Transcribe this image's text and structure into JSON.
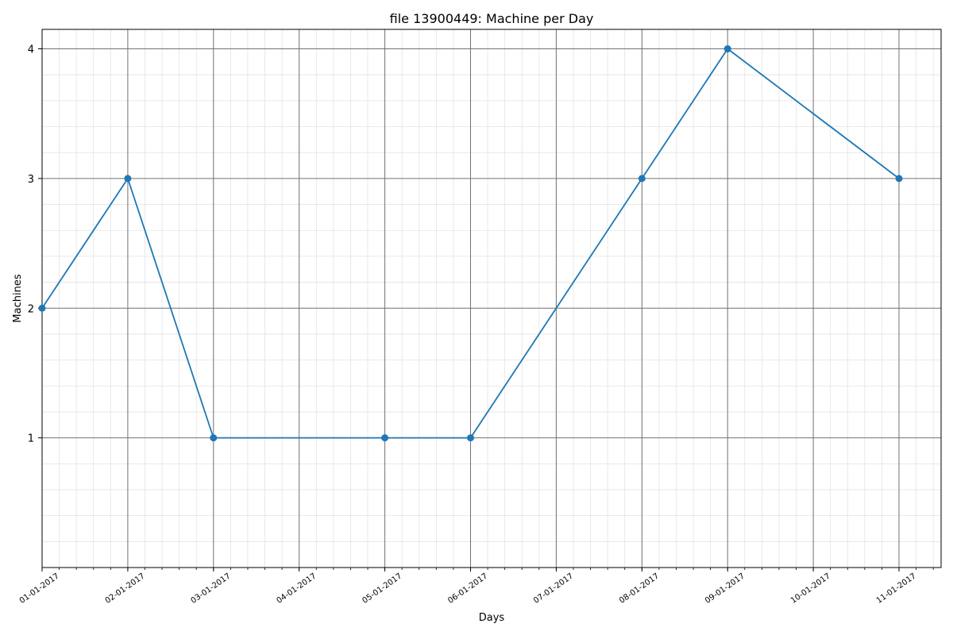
{
  "chart_data": {
    "type": "line",
    "title": "file 13900449: Machine per Day",
    "xlabel": "Days",
    "ylabel": "Machines",
    "x_ticks": [
      "01-01-2017",
      "02-01-2017",
      "03-01-2017",
      "04-01-2017",
      "05-01-2017",
      "06-01-2017",
      "07-01-2017",
      "08-01-2017",
      "09-01-2017",
      "10-01-2017",
      "11-01-2017"
    ],
    "y_ticks": [
      1,
      2,
      3,
      4
    ],
    "ylim": [
      0,
      4.15
    ],
    "grid": true,
    "series": [
      {
        "color": "#1f77b4",
        "marker": "circle",
        "points": [
          {
            "x": "01-01-2017",
            "y": 2
          },
          {
            "x": "02-01-2017",
            "y": 3
          },
          {
            "x": "03-01-2017",
            "y": 1
          },
          {
            "x": "05-01-2017",
            "y": 1
          },
          {
            "x": "06-01-2017",
            "y": 1
          },
          {
            "x": "08-01-2017",
            "y": 3
          },
          {
            "x": "09-01-2017",
            "y": 4
          },
          {
            "x": "11-01-2017",
            "y": 3
          }
        ]
      }
    ]
  }
}
